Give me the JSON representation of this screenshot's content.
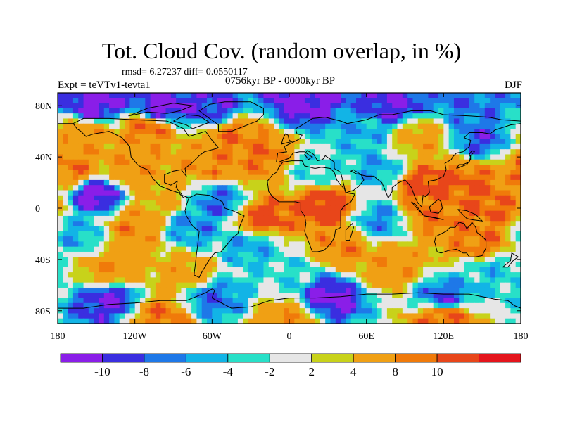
{
  "title": "Tot. Cloud Cov. (random overlap, in %)",
  "stats": "rmsd= 6.27237 diff= 0.0550117",
  "experiment": "Expt = teVTv1-tevta1",
  "period": "0756kyr BP - 0000kyr BP",
  "season": "DJF",
  "chart_data": {
    "type": "heatmap",
    "projection": "cylindrical-equidistant",
    "xlim": [
      -180,
      180
    ],
    "ylim": [
      -90,
      90
    ],
    "x_ticks": [
      {
        "value": -180,
        "label": "180"
      },
      {
        "value": -120,
        "label": "120W"
      },
      {
        "value": -60,
        "label": "60W"
      },
      {
        "value": 0,
        "label": "0"
      },
      {
        "value": 60,
        "label": "60E"
      },
      {
        "value": 120,
        "label": "120E"
      },
      {
        "value": 180,
        "label": "180"
      }
    ],
    "y_ticks": [
      {
        "value": 80,
        "label": "80N"
      },
      {
        "value": 40,
        "label": "40N"
      },
      {
        "value": 0,
        "label": "0"
      },
      {
        "value": -40,
        "label": "40S"
      },
      {
        "value": -80,
        "label": "80S"
      }
    ],
    "colorbar": {
      "colors": [
        "#8a1ee8",
        "#3a2ee0",
        "#1e78e8",
        "#12b4e6",
        "#28e0c8",
        "#e6e6e6",
        "#c8d21a",
        "#f0a014",
        "#f07a0a",
        "#e8461a",
        "#e4141c"
      ],
      "levels": [
        -10,
        -8,
        -6,
        -4,
        -2,
        2,
        4,
        8,
        10
      ],
      "labels": [
        "-10",
        "-8",
        "-6",
        "-4",
        "-2",
        "2",
        "4",
        "8",
        "10"
      ]
    },
    "fields": [
      {
        "lon": -150,
        "lat": 82,
        "value": -11
      },
      {
        "lon": -100,
        "lat": 78,
        "value": -11
      },
      {
        "lon": -60,
        "lat": 80,
        "value": -9
      },
      {
        "lon": 10,
        "lat": 82,
        "value": -11
      },
      {
        "lon": 80,
        "lat": 80,
        "value": -10
      },
      {
        "lon": 140,
        "lat": 80,
        "value": -7
      },
      {
        "lon": -160,
        "lat": 55,
        "value": 7
      },
      {
        "lon": -110,
        "lat": 62,
        "value": 9
      },
      {
        "lon": -40,
        "lat": 55,
        "value": 9
      },
      {
        "lon": 60,
        "lat": 60,
        "value": -5
      },
      {
        "lon": 100,
        "lat": 55,
        "value": 6
      },
      {
        "lon": 150,
        "lat": 55,
        "value": -8
      },
      {
        "lon": -170,
        "lat": 30,
        "value": 9
      },
      {
        "lon": -120,
        "lat": 30,
        "value": 7
      },
      {
        "lon": -60,
        "lat": 35,
        "value": 8
      },
      {
        "lon": -20,
        "lat": 40,
        "value": 9
      },
      {
        "lon": 20,
        "lat": 30,
        "value": -3
      },
      {
        "lon": 70,
        "lat": 30,
        "value": -5
      },
      {
        "lon": 105,
        "lat": 18,
        "value": 11
      },
      {
        "lon": 140,
        "lat": 20,
        "value": 10
      },
      {
        "lon": -150,
        "lat": 10,
        "value": -11
      },
      {
        "lon": -100,
        "lat": 8,
        "value": 5
      },
      {
        "lon": -55,
        "lat": 5,
        "value": -7
      },
      {
        "lon": -20,
        "lat": -8,
        "value": 11
      },
      {
        "lon": 28,
        "lat": 2,
        "value": 12
      },
      {
        "lon": 70,
        "lat": -10,
        "value": -6
      },
      {
        "lon": 110,
        "lat": -2,
        "value": 9
      },
      {
        "lon": 160,
        "lat": 0,
        "value": 10
      },
      {
        "lon": -165,
        "lat": -20,
        "value": -5
      },
      {
        "lon": -120,
        "lat": -15,
        "value": 8
      },
      {
        "lon": -75,
        "lat": -15,
        "value": -6
      },
      {
        "lon": -30,
        "lat": -30,
        "value": -5
      },
      {
        "lon": 40,
        "lat": -30,
        "value": 8
      },
      {
        "lon": 150,
        "lat": -25,
        "value": 9
      },
      {
        "lon": -140,
        "lat": -48,
        "value": 7
      },
      {
        "lon": -80,
        "lat": -50,
        "value": 6
      },
      {
        "lon": 0,
        "lat": -50,
        "value": -3
      },
      {
        "lon": 80,
        "lat": -45,
        "value": 7
      },
      {
        "lon": 160,
        "lat": -50,
        "value": -4
      },
      {
        "lon": -140,
        "lat": -72,
        "value": -10
      },
      {
        "lon": -60,
        "lat": -70,
        "value": -7
      },
      {
        "lon": 30,
        "lat": -70,
        "value": -11
      },
      {
        "lon": 120,
        "lat": -70,
        "value": -8
      },
      {
        "lon": -100,
        "lat": -85,
        "value": 9
      },
      {
        "lon": 0,
        "lat": -86,
        "value": 7
      },
      {
        "lon": 120,
        "lat": -85,
        "value": 10
      }
    ]
  }
}
